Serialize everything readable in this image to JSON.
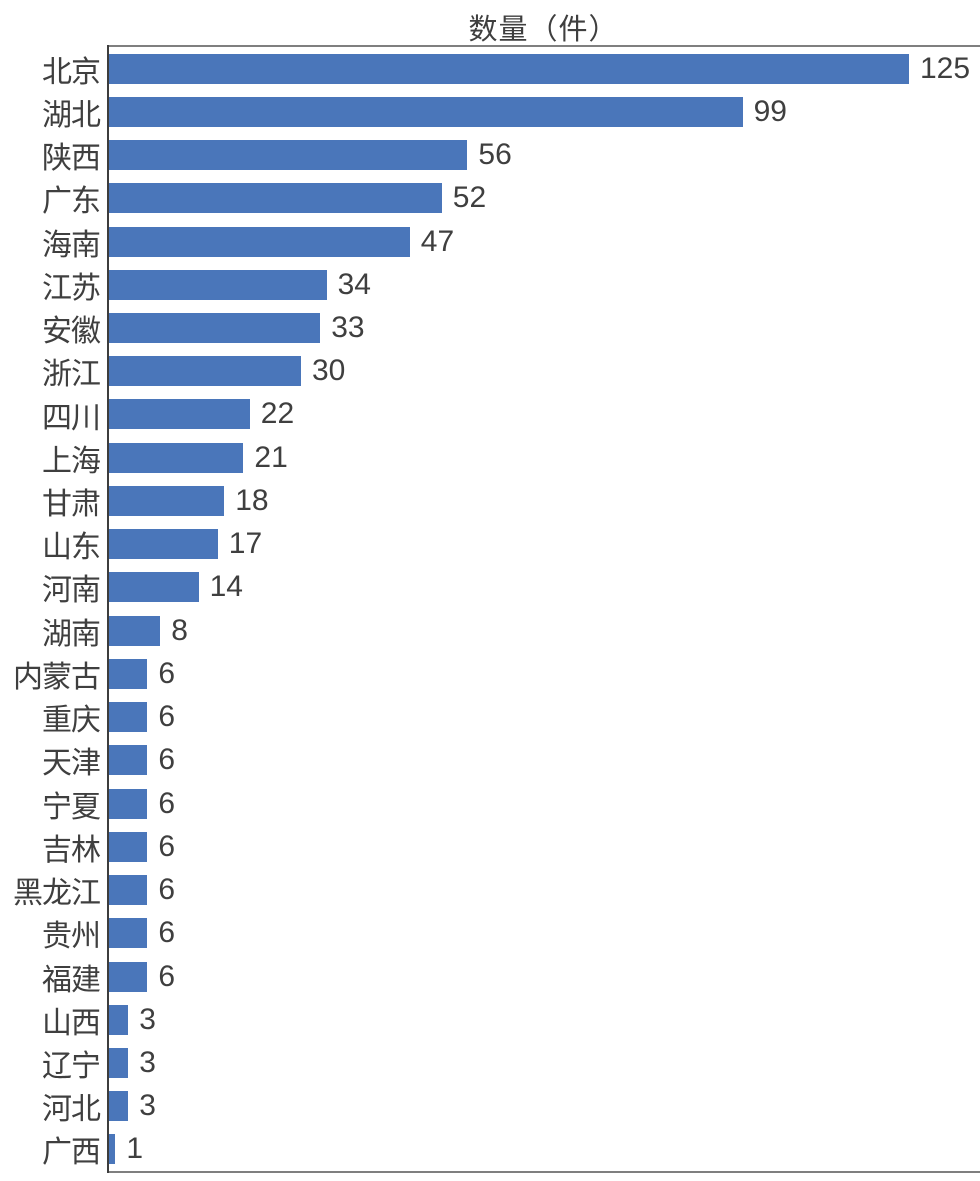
{
  "chart_data": {
    "type": "bar",
    "orientation": "horizontal",
    "title": "数量（件）",
    "categories": [
      "北京",
      "湖北",
      "陕西",
      "广东",
      "海南",
      "江苏",
      "安徽",
      "浙江",
      "四川",
      "上海",
      "甘肃",
      "山东",
      "河南",
      "湖南",
      "内蒙古",
      "重庆",
      "天津",
      "宁夏",
      "吉林",
      "黑龙江",
      "贵州",
      "福建",
      "山西",
      "辽宁",
      "河北",
      "广西"
    ],
    "values": [
      125,
      99,
      56,
      52,
      47,
      34,
      33,
      30,
      22,
      21,
      18,
      17,
      14,
      8,
      6,
      6,
      6,
      6,
      6,
      6,
      6,
      6,
      3,
      3,
      3,
      1
    ],
    "xlabel": "",
    "ylabel": "",
    "xlim": [
      0,
      136
    ],
    "grid": false,
    "legend": false,
    "data_labels": true,
    "bar_color": "#4a76ba",
    "text_color": "#3f3f3f",
    "frame_color": "#7f7f7f",
    "axis_color": "#3d3d3d"
  }
}
